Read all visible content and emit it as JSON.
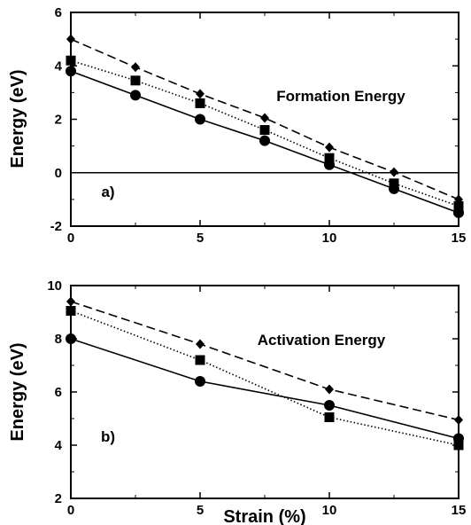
{
  "chart_data": [
    {
      "type": "line",
      "panel_label": "a)",
      "annotation": "Formation Energy",
      "xlabel": "",
      "ylabel": "Energy (eV)",
      "xlim": [
        0,
        15
      ],
      "ylim": [
        -2,
        6
      ],
      "xticks": [
        0,
        5,
        10,
        15
      ],
      "yticks": [
        -2,
        0,
        2,
        4,
        6
      ],
      "reference_line_y": 0,
      "series": [
        {
          "marker": "circle",
          "line": "solid",
          "color": "#000000",
          "x": [
            0,
            2.5,
            5,
            7.5,
            10,
            12.5,
            15
          ],
          "y": [
            3.8,
            2.9,
            2.0,
            1.2,
            0.3,
            -0.6,
            -1.5
          ]
        },
        {
          "marker": "square",
          "line": "dotted",
          "color": "#000000",
          "x": [
            0,
            2.5,
            5,
            7.5,
            10,
            12.5,
            15
          ],
          "y": [
            4.2,
            3.45,
            2.6,
            1.6,
            0.55,
            -0.4,
            -1.25
          ]
        },
        {
          "marker": "diamond",
          "line": "dashed",
          "color": "#000000",
          "x": [
            0,
            2.5,
            5,
            7.5,
            10,
            12.5,
            15
          ],
          "y": [
            5.0,
            3.95,
            2.95,
            2.05,
            0.95,
            0.02,
            -1.0
          ]
        }
      ]
    },
    {
      "type": "line",
      "panel_label": "b)",
      "annotation": "Activation Energy",
      "xlabel": "Strain (%)",
      "ylabel": "Energy (eV)",
      "xlim": [
        0,
        15
      ],
      "ylim": [
        2,
        10
      ],
      "xticks": [
        0,
        5,
        10,
        15
      ],
      "yticks": [
        2,
        4,
        6,
        8,
        10
      ],
      "series": [
        {
          "marker": "circle",
          "line": "solid",
          "color": "#000000",
          "x": [
            0,
            5,
            10,
            15
          ],
          "y": [
            8.0,
            6.4,
            5.5,
            4.25
          ]
        },
        {
          "marker": "square",
          "line": "dotted",
          "color": "#000000",
          "x": [
            0,
            5,
            10,
            15
          ],
          "y": [
            9.05,
            7.2,
            5.05,
            4.0
          ]
        },
        {
          "marker": "diamond",
          "line": "dashed",
          "color": "#000000",
          "x": [
            0,
            5,
            10,
            15
          ],
          "y": [
            9.4,
            7.8,
            6.1,
            4.95
          ]
        }
      ]
    }
  ]
}
